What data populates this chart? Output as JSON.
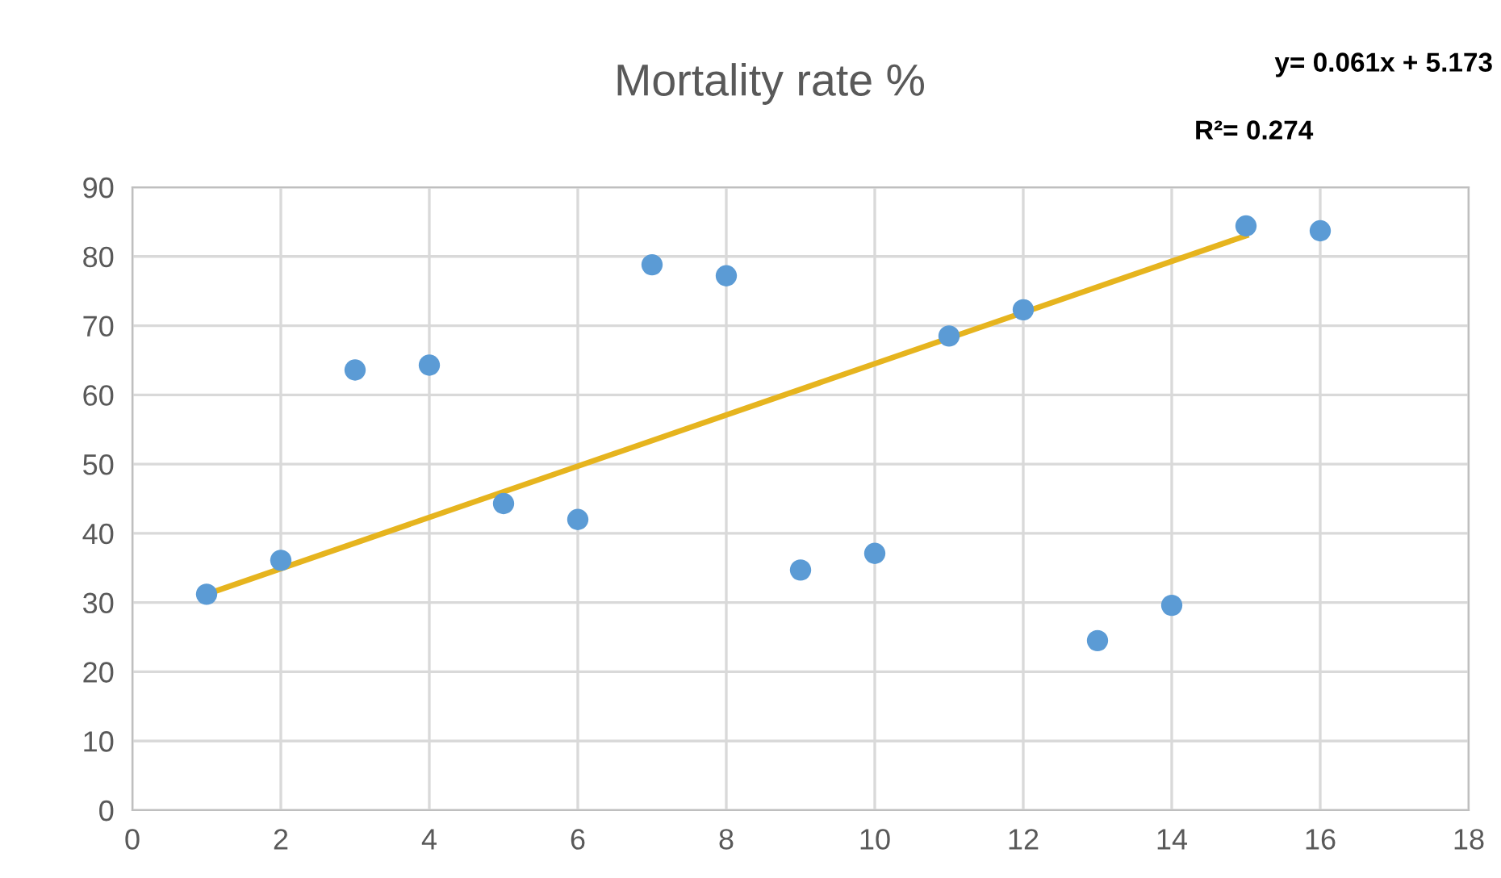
{
  "chart_data": {
    "type": "scatter",
    "title": "Mortality rate %",
    "annotations": [
      "y= 0.061x + 5.173",
      "R²= 0.274"
    ],
    "series": [
      {
        "color": "#5b9bd5",
        "x": [
          1,
          2,
          3,
          4,
          5,
          6,
          7,
          8,
          9,
          10,
          11,
          12,
          13,
          14,
          15,
          16
        ],
        "values": [
          31.2,
          36.1,
          63.6,
          64.3,
          44.3,
          42.0,
          78.8,
          77.2,
          34.7,
          37.1,
          68.5,
          72.3,
          24.5,
          29.6,
          84.4,
          83.7
        ],
        "marker": "circle"
      },
      {
        "type": "line",
        "color": "#e6b41e",
        "x": [
          1,
          15
        ],
        "values": [
          31.2,
          83.0
        ],
        "marker": "none",
        "line_style": "solid"
      }
    ],
    "xlim": [
      0,
      18
    ],
    "xticks": [
      0,
      2,
      4,
      6,
      8,
      10,
      12,
      14,
      16,
      18
    ],
    "ylim": [
      0,
      90
    ],
    "yticks": [
      0,
      10,
      20,
      30,
      40,
      50,
      60,
      70,
      80,
      90
    ],
    "grid": true,
    "legend": false
  }
}
